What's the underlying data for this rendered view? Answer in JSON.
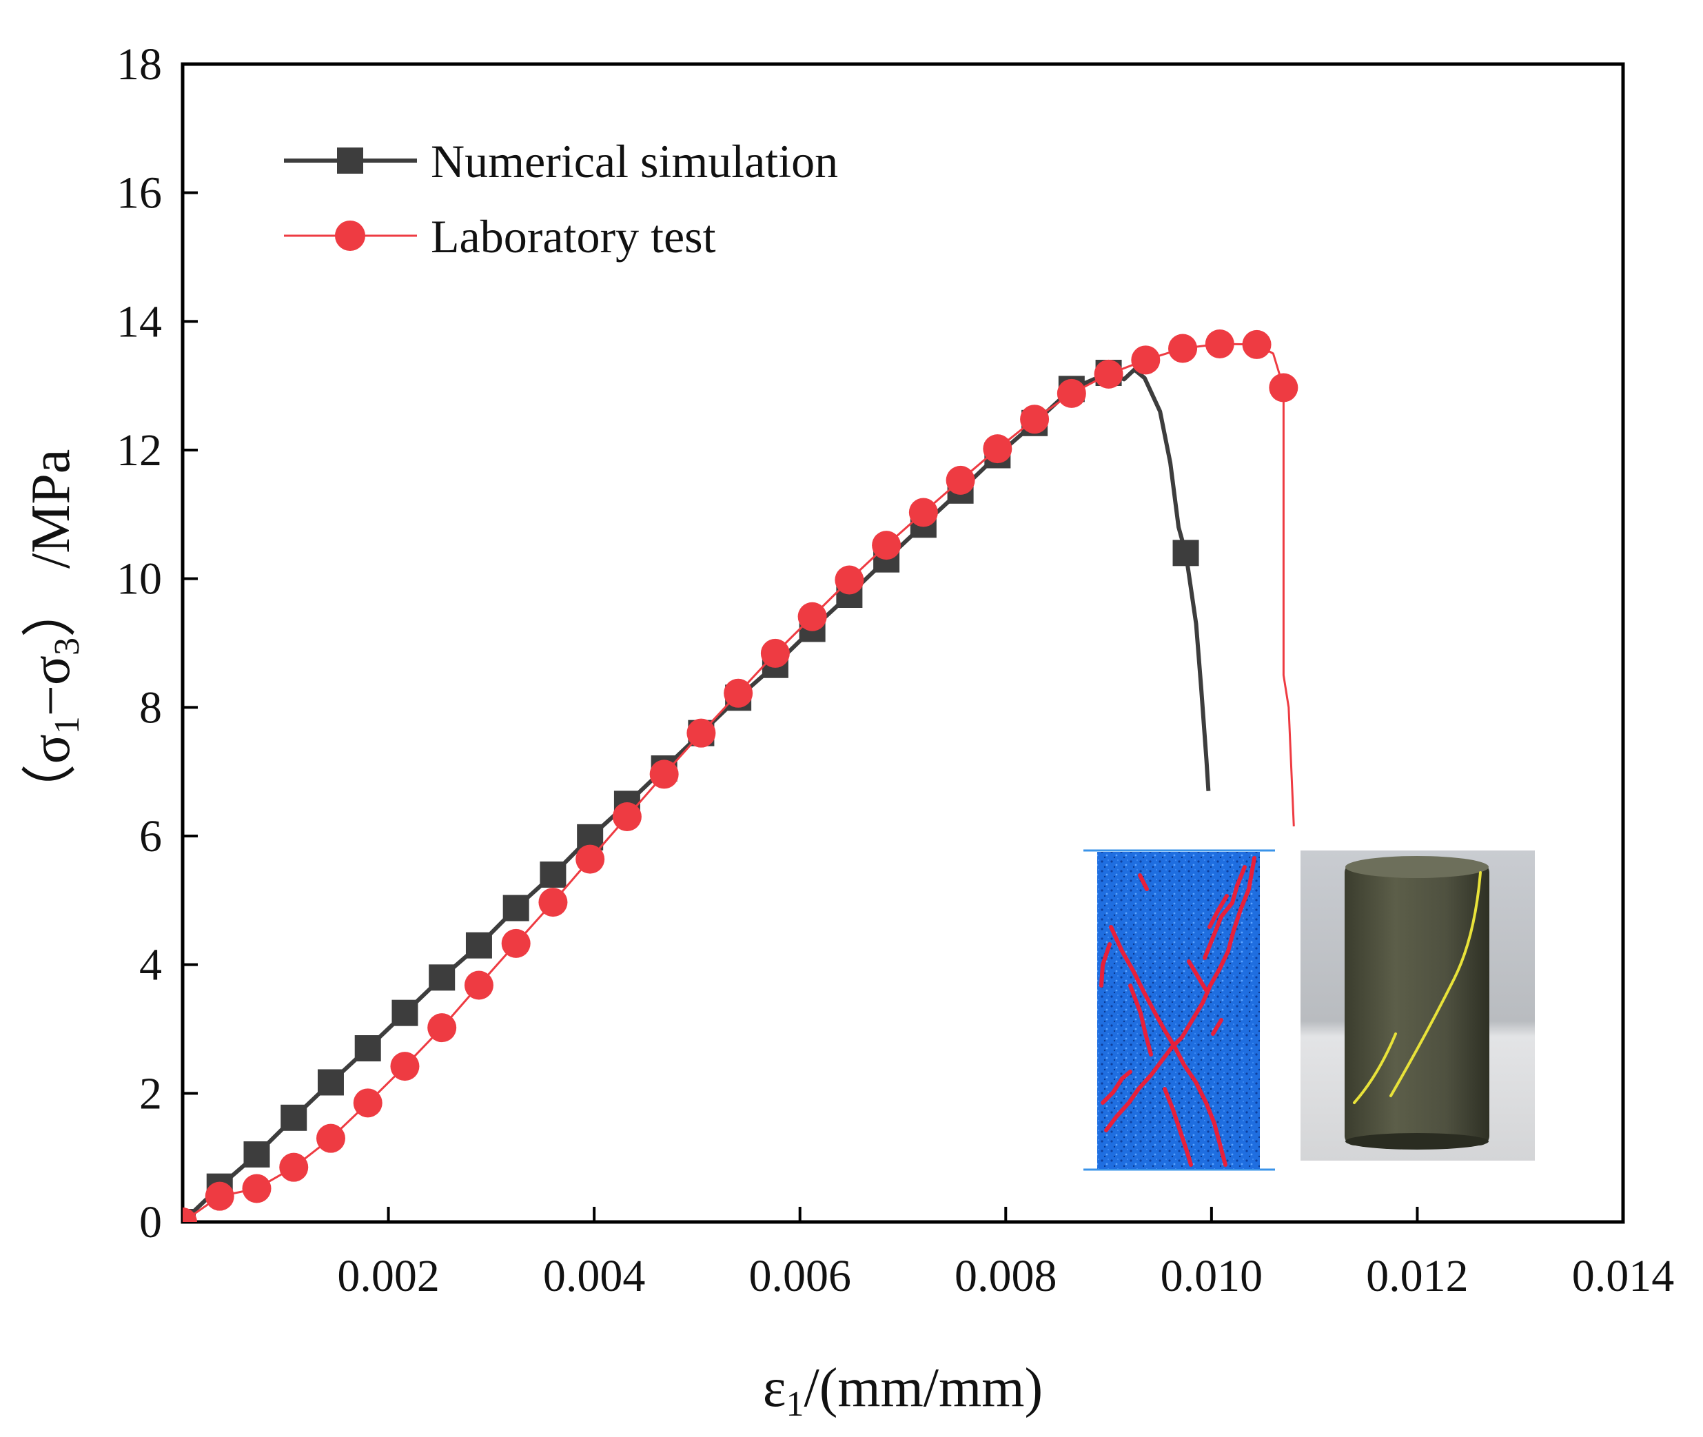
{
  "chart_data": {
    "type": "line",
    "title": "",
    "xlabel": {
      "main": "ε",
      "sub": "1",
      "rest": "/(mm/mm)"
    },
    "ylabel": {
      "open": "（σ",
      "sub1": "1",
      "mid": "−σ",
      "sub3": "3",
      "close": "）",
      "rest": "  /MPa"
    },
    "xlim": [
      0,
      0.014
    ],
    "ylim": [
      0,
      18
    ],
    "x_ticks": [
      {
        "value": 0.002,
        "label": "0.002"
      },
      {
        "value": 0.004,
        "label": "0.004"
      },
      {
        "value": 0.006,
        "label": "0.006"
      },
      {
        "value": 0.008,
        "label": "0.008"
      },
      {
        "value": 0.01,
        "label": "0.010"
      },
      {
        "value": 0.012,
        "label": "0.012"
      },
      {
        "value": 0.014,
        "label": "0.014"
      }
    ],
    "y_ticks": [
      {
        "value": 0,
        "label": "0"
      },
      {
        "value": 2,
        "label": "2"
      },
      {
        "value": 4,
        "label": "4"
      },
      {
        "value": 6,
        "label": "6"
      },
      {
        "value": 8,
        "label": "8"
      },
      {
        "value": 10,
        "label": "10"
      },
      {
        "value": 12,
        "label": "12"
      },
      {
        "value": 14,
        "label": "14"
      },
      {
        "value": 16,
        "label": "16"
      },
      {
        "value": 18,
        "label": "18"
      }
    ],
    "legend_position": "top-left",
    "series": [
      {
        "name": "Numerical simulation",
        "color": "#3d3d3d",
        "marker": "square",
        "line": [
          [
            0.0,
            0.0
          ],
          [
            0.00036,
            0.55
          ],
          [
            0.00072,
            1.05
          ],
          [
            0.00108,
            1.62
          ],
          [
            0.00144,
            2.17
          ],
          [
            0.0018,
            2.7
          ],
          [
            0.00216,
            3.25
          ],
          [
            0.00252,
            3.8
          ],
          [
            0.00288,
            4.3
          ],
          [
            0.00324,
            4.88
          ],
          [
            0.0036,
            5.4
          ],
          [
            0.00396,
            5.98
          ],
          [
            0.00432,
            6.5
          ],
          [
            0.00468,
            7.05
          ],
          [
            0.00504,
            7.6
          ],
          [
            0.0054,
            8.15
          ],
          [
            0.00576,
            8.66
          ],
          [
            0.00612,
            9.22
          ],
          [
            0.00648,
            9.75
          ],
          [
            0.00684,
            10.3
          ],
          [
            0.0072,
            10.84
          ],
          [
            0.00756,
            11.37
          ],
          [
            0.00792,
            11.92
          ],
          [
            0.00828,
            12.42
          ],
          [
            0.00864,
            12.95
          ],
          [
            0.009,
            13.2
          ],
          [
            0.00915,
            13.1
          ],
          [
            0.00925,
            13.25
          ],
          [
            0.00935,
            13.12
          ],
          [
            0.0095,
            12.6
          ],
          [
            0.0096,
            11.8
          ],
          [
            0.00968,
            10.8
          ],
          [
            0.00975,
            10.4
          ],
          [
            0.00985,
            9.3
          ],
          [
            0.0099,
            8.3
          ],
          [
            0.00995,
            7.2
          ],
          [
            0.00997,
            6.7
          ]
        ],
        "markers": [
          [
            0.0,
            0.0
          ],
          [
            0.00036,
            0.55
          ],
          [
            0.00072,
            1.05
          ],
          [
            0.00108,
            1.62
          ],
          [
            0.00144,
            2.17
          ],
          [
            0.0018,
            2.7
          ],
          [
            0.00216,
            3.25
          ],
          [
            0.00252,
            3.8
          ],
          [
            0.00288,
            4.3
          ],
          [
            0.00324,
            4.88
          ],
          [
            0.0036,
            5.4
          ],
          [
            0.00396,
            5.98
          ],
          [
            0.00432,
            6.5
          ],
          [
            0.00468,
            7.05
          ],
          [
            0.00504,
            7.6
          ],
          [
            0.0054,
            8.15
          ],
          [
            0.00576,
            8.66
          ],
          [
            0.00612,
            9.22
          ],
          [
            0.00648,
            9.75
          ],
          [
            0.00684,
            10.3
          ],
          [
            0.0072,
            10.84
          ],
          [
            0.00756,
            11.37
          ],
          [
            0.00792,
            11.92
          ],
          [
            0.00828,
            12.42
          ],
          [
            0.00864,
            12.95
          ],
          [
            0.009,
            13.2
          ],
          [
            0.00975,
            10.4
          ]
        ]
      },
      {
        "name": "Laboratory test",
        "color": "#ee3b42",
        "marker": "circle",
        "line": [
          [
            0.0,
            0.0
          ],
          [
            0.00036,
            0.4
          ],
          [
            0.00072,
            0.52
          ],
          [
            0.00108,
            0.85
          ],
          [
            0.00144,
            1.3
          ],
          [
            0.0018,
            1.85
          ],
          [
            0.00216,
            2.42
          ],
          [
            0.00252,
            3.02
          ],
          [
            0.00288,
            3.68
          ],
          [
            0.00324,
            4.33
          ],
          [
            0.0036,
            4.97
          ],
          [
            0.00396,
            5.64
          ],
          [
            0.00432,
            6.3
          ],
          [
            0.00468,
            6.96
          ],
          [
            0.00504,
            7.6
          ],
          [
            0.0054,
            8.22
          ],
          [
            0.00576,
            8.84
          ],
          [
            0.00612,
            9.41
          ],
          [
            0.00648,
            9.98
          ],
          [
            0.00684,
            10.52
          ],
          [
            0.0072,
            11.03
          ],
          [
            0.00756,
            11.53
          ],
          [
            0.00792,
            12.02
          ],
          [
            0.00828,
            12.48
          ],
          [
            0.00864,
            12.88
          ],
          [
            0.009,
            13.18
          ],
          [
            0.00936,
            13.4
          ],
          [
            0.00972,
            13.58
          ],
          [
            0.01008,
            13.65
          ],
          [
            0.01044,
            13.64
          ],
          [
            0.0106,
            13.5
          ],
          [
            0.0107,
            12.97
          ],
          [
            0.0107,
            8.5
          ],
          [
            0.01075,
            8.0
          ],
          [
            0.0108,
            6.15
          ]
        ],
        "markers": [
          [
            0.0,
            0.0
          ],
          [
            0.00036,
            0.4
          ],
          [
            0.00072,
            0.52
          ],
          [
            0.00108,
            0.85
          ],
          [
            0.00144,
            1.3
          ],
          [
            0.0018,
            1.85
          ],
          [
            0.00216,
            2.42
          ],
          [
            0.00252,
            3.02
          ],
          [
            0.00288,
            3.68
          ],
          [
            0.00324,
            4.33
          ],
          [
            0.0036,
            4.97
          ],
          [
            0.00396,
            5.64
          ],
          [
            0.00432,
            6.3
          ],
          [
            0.00468,
            6.96
          ],
          [
            0.00504,
            7.6
          ],
          [
            0.0054,
            8.22
          ],
          [
            0.00576,
            8.84
          ],
          [
            0.00612,
            9.41
          ],
          [
            0.00648,
            9.98
          ],
          [
            0.00684,
            10.52
          ],
          [
            0.0072,
            11.03
          ],
          [
            0.00756,
            11.53
          ],
          [
            0.00792,
            12.02
          ],
          [
            0.00828,
            12.48
          ],
          [
            0.00864,
            12.88
          ],
          [
            0.009,
            13.18
          ],
          [
            0.00936,
            13.4
          ],
          [
            0.00972,
            13.58
          ],
          [
            0.01008,
            13.65
          ],
          [
            0.01044,
            13.64
          ],
          [
            0.0107,
            12.97
          ]
        ]
      }
    ]
  },
  "insets": {
    "simulation": {
      "name": "numerical simulation failure",
      "base_color": "#1e6fe0",
      "crack_color": "#e8203a"
    },
    "specimen": {
      "name": "laboratory specimen photo",
      "crack_color": "#e8e23a"
    }
  }
}
